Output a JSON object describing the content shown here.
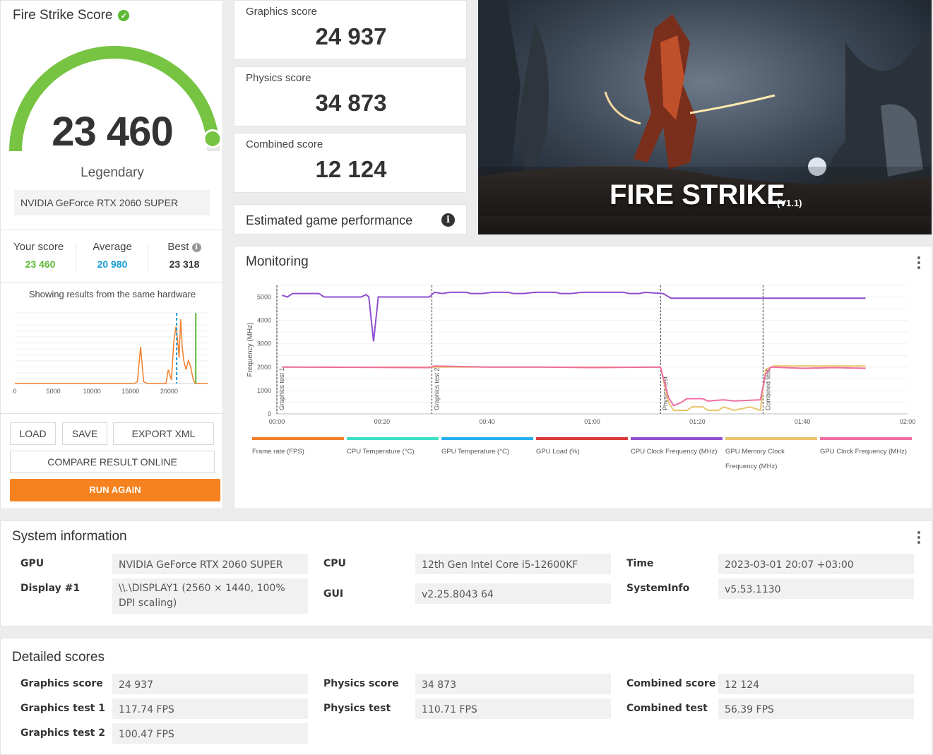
{
  "score_card": {
    "title": "Fire Strike Score",
    "score": "23 460",
    "gauge_fraction": 0.96,
    "tier": "Legendary",
    "gpu": "NVIDIA GeForce RTX 2060 SUPER",
    "your_score_label": "Your score",
    "your_score": "23 460",
    "average_label": "Average",
    "average": "20 980",
    "best_label": "Best",
    "best": "23 318",
    "showing_text": "Showing results from the same hardware",
    "buttons": {
      "load": "LOAD",
      "save": "SAVE",
      "export": "EXPORT XML",
      "compare": "COMPARE RESULT ONLINE",
      "run": "RUN AGAIN"
    },
    "colors": {
      "gauge": "#76c442",
      "your_score": "#5fb939",
      "average": "#1a9bd7",
      "run_button": "#f5821f"
    }
  },
  "distribution_chart": {
    "x_ticks": [
      "0",
      "5000",
      "10000",
      "15000",
      "20000"
    ],
    "average_marker": 20980,
    "your_score_marker": 23460
  },
  "sub_scores": [
    {
      "label": "Graphics score",
      "value": "24 937"
    },
    {
      "label": "Physics score",
      "value": "34 873"
    },
    {
      "label": "Combined score",
      "value": "12 124"
    }
  ],
  "estimated": {
    "label": "Estimated game performance"
  },
  "hero": {
    "title": "FIRE STRIKE",
    "version": "(V1.1)"
  },
  "monitoring": {
    "title": "Monitoring",
    "y_label": "Frequency (MHz)",
    "y_ticks": [
      "0",
      "1000",
      "2000",
      "3000",
      "4000",
      "5000"
    ],
    "x_ticks": [
      "00:00",
      "00:20",
      "00:40",
      "01:00",
      "01:20",
      "01:40",
      "02:00"
    ],
    "phase_markers": [
      "Graphics test 1",
      "Graphics test 2",
      "Physics test",
      "Combined test"
    ],
    "legend": [
      {
        "name": "Frame rate (FPS)",
        "color": "#f27f2a"
      },
      {
        "name": "CPU Temperature (°C)",
        "color": "#3de0c4"
      },
      {
        "name": "GPU Temperature (°C)",
        "color": "#27aef0"
      },
      {
        "name": "GPU Load (%)",
        "color": "#d93a3a"
      },
      {
        "name": "CPU Clock Frequency (MHz)",
        "color": "#8f4fcf"
      },
      {
        "name": "GPU Memory Clock Frequency (MHz)",
        "color": "#e9c46a"
      },
      {
        "name": "GPU Clock Frequency (MHz)",
        "color": "#ee6fa6"
      }
    ]
  },
  "system_info": {
    "title": "System information",
    "rows": [
      {
        "label": "GPU",
        "value": "NVIDIA GeForce RTX 2060 SUPER"
      },
      {
        "label": "Display #1",
        "value": "\\\\.\\DISPLAY1 (2560 × 1440, 100% DPI scaling)"
      },
      {
        "label": "CPU",
        "value": "12th Gen Intel Core i5-12600KF"
      },
      {
        "label": "GUI",
        "value": "v2.25.8043 64"
      },
      {
        "label": "Time",
        "value": "2023-03-01 20:07 +03:00"
      },
      {
        "label": "SystemInfo",
        "value": "v5.53.1130"
      }
    ]
  },
  "detailed_scores": {
    "title": "Detailed scores",
    "rows": [
      {
        "label": "Graphics score",
        "value": "24 937"
      },
      {
        "label": "Graphics test 1",
        "value": "117.74 FPS"
      },
      {
        "label": "Graphics test 2",
        "value": "100.47 FPS"
      },
      {
        "label": "Physics score",
        "value": "34 873"
      },
      {
        "label": "Physics test",
        "value": "110.71 FPS"
      },
      {
        "label": "Combined score",
        "value": "12 124"
      },
      {
        "label": "Combined test",
        "value": "56.39 FPS"
      }
    ]
  }
}
